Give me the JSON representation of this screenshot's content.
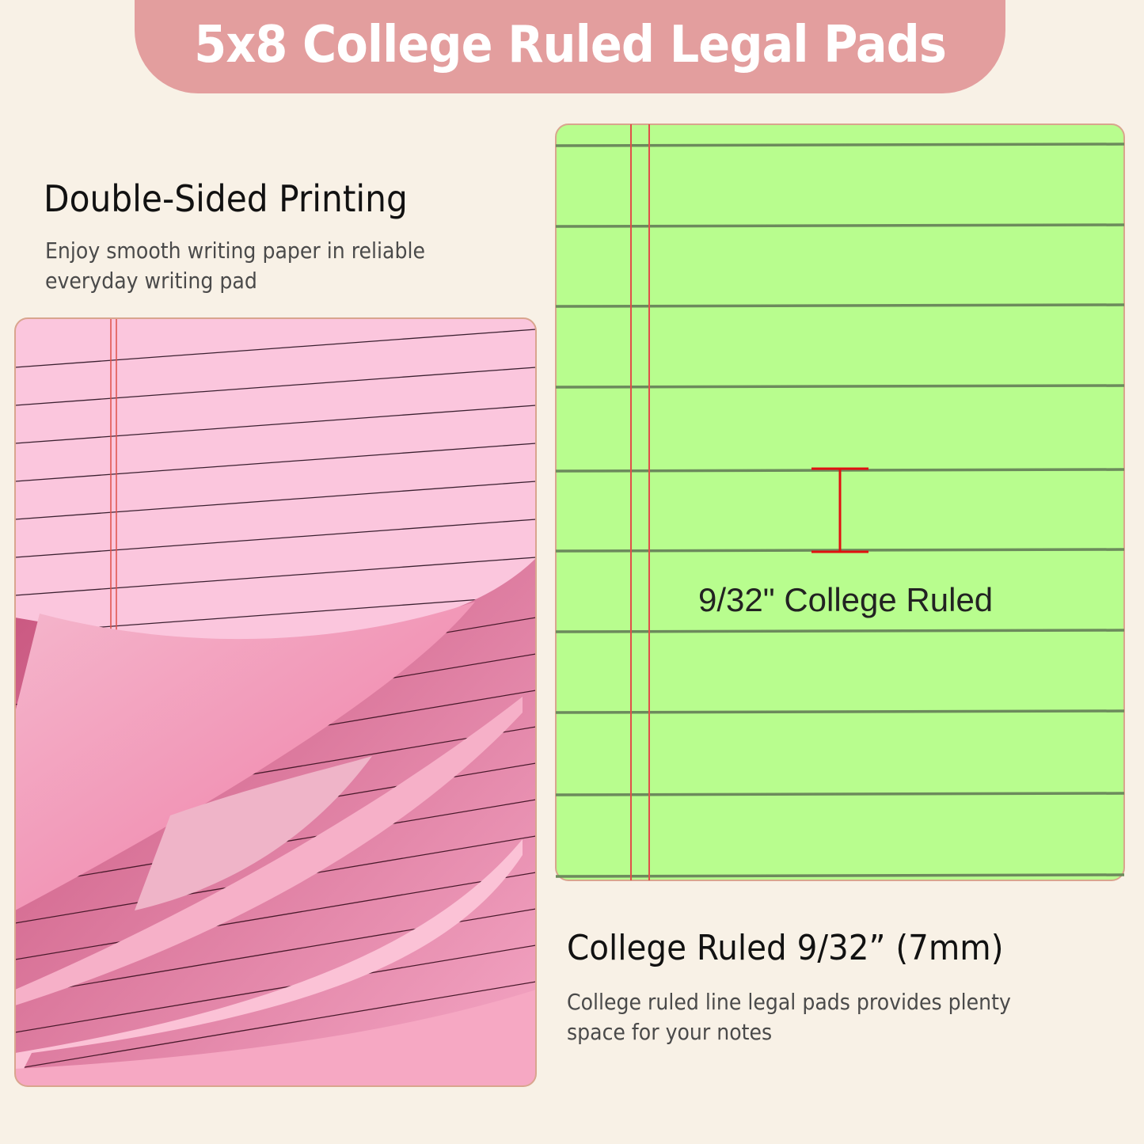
{
  "banner": {
    "title": "5x8 College Ruled Legal Pads"
  },
  "left_feature": {
    "heading": "Double-Sided Printing",
    "description": "Enjoy smooth writing paper in reliable everyday writing pad"
  },
  "right_feature": {
    "heading": "College Ruled 9/32” (7mm)",
    "description": "College ruled line legal pads provides plenty space for your notes"
  },
  "green_pad": {
    "ruling_label": "9/32\" College Ruled"
  },
  "colors": {
    "background": "#f8f1e6",
    "banner": "#e39e9e",
    "green_paper": "#b8fd8e",
    "pink_paper": "#fbc6dd",
    "margin_red": "#e0504a",
    "measure_red": "#e01010"
  }
}
